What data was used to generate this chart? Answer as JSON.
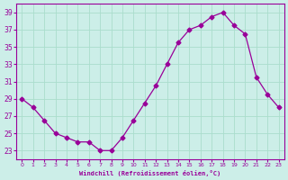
{
  "x": [
    0,
    1,
    2,
    3,
    4,
    5,
    6,
    7,
    8,
    9,
    10,
    11,
    12,
    13,
    14,
    15,
    16,
    17,
    18,
    19,
    20,
    21,
    22,
    23
  ],
  "y": [
    29.0,
    28.0,
    26.5,
    25.0,
    24.5,
    24.0,
    24.0,
    23.0,
    23.0,
    24.5,
    26.5,
    28.5,
    30.5,
    33.0,
    35.5,
    37.0,
    37.5,
    38.5,
    39.0,
    37.5,
    36.5,
    31.5,
    29.5,
    28.0
  ],
  "line_color": "#990099",
  "marker": "D",
  "marker_size": 2.5,
  "bg_color": "#cceee8",
  "grid_color": "#aaddcc",
  "xlabel": "Windchill (Refroidissement éolien,°C)",
  "xlabel_color": "#990099",
  "tick_color": "#990099",
  "ylim": [
    22,
    40
  ],
  "yticks": [
    23,
    25,
    27,
    29,
    31,
    33,
    35,
    37,
    39
  ],
  "xlim": [
    -0.5,
    23.5
  ],
  "xticks": [
    0,
    1,
    2,
    3,
    4,
    5,
    6,
    7,
    8,
    9,
    10,
    11,
    12,
    13,
    14,
    15,
    16,
    17,
    18,
    19,
    20,
    21,
    22,
    23
  ]
}
